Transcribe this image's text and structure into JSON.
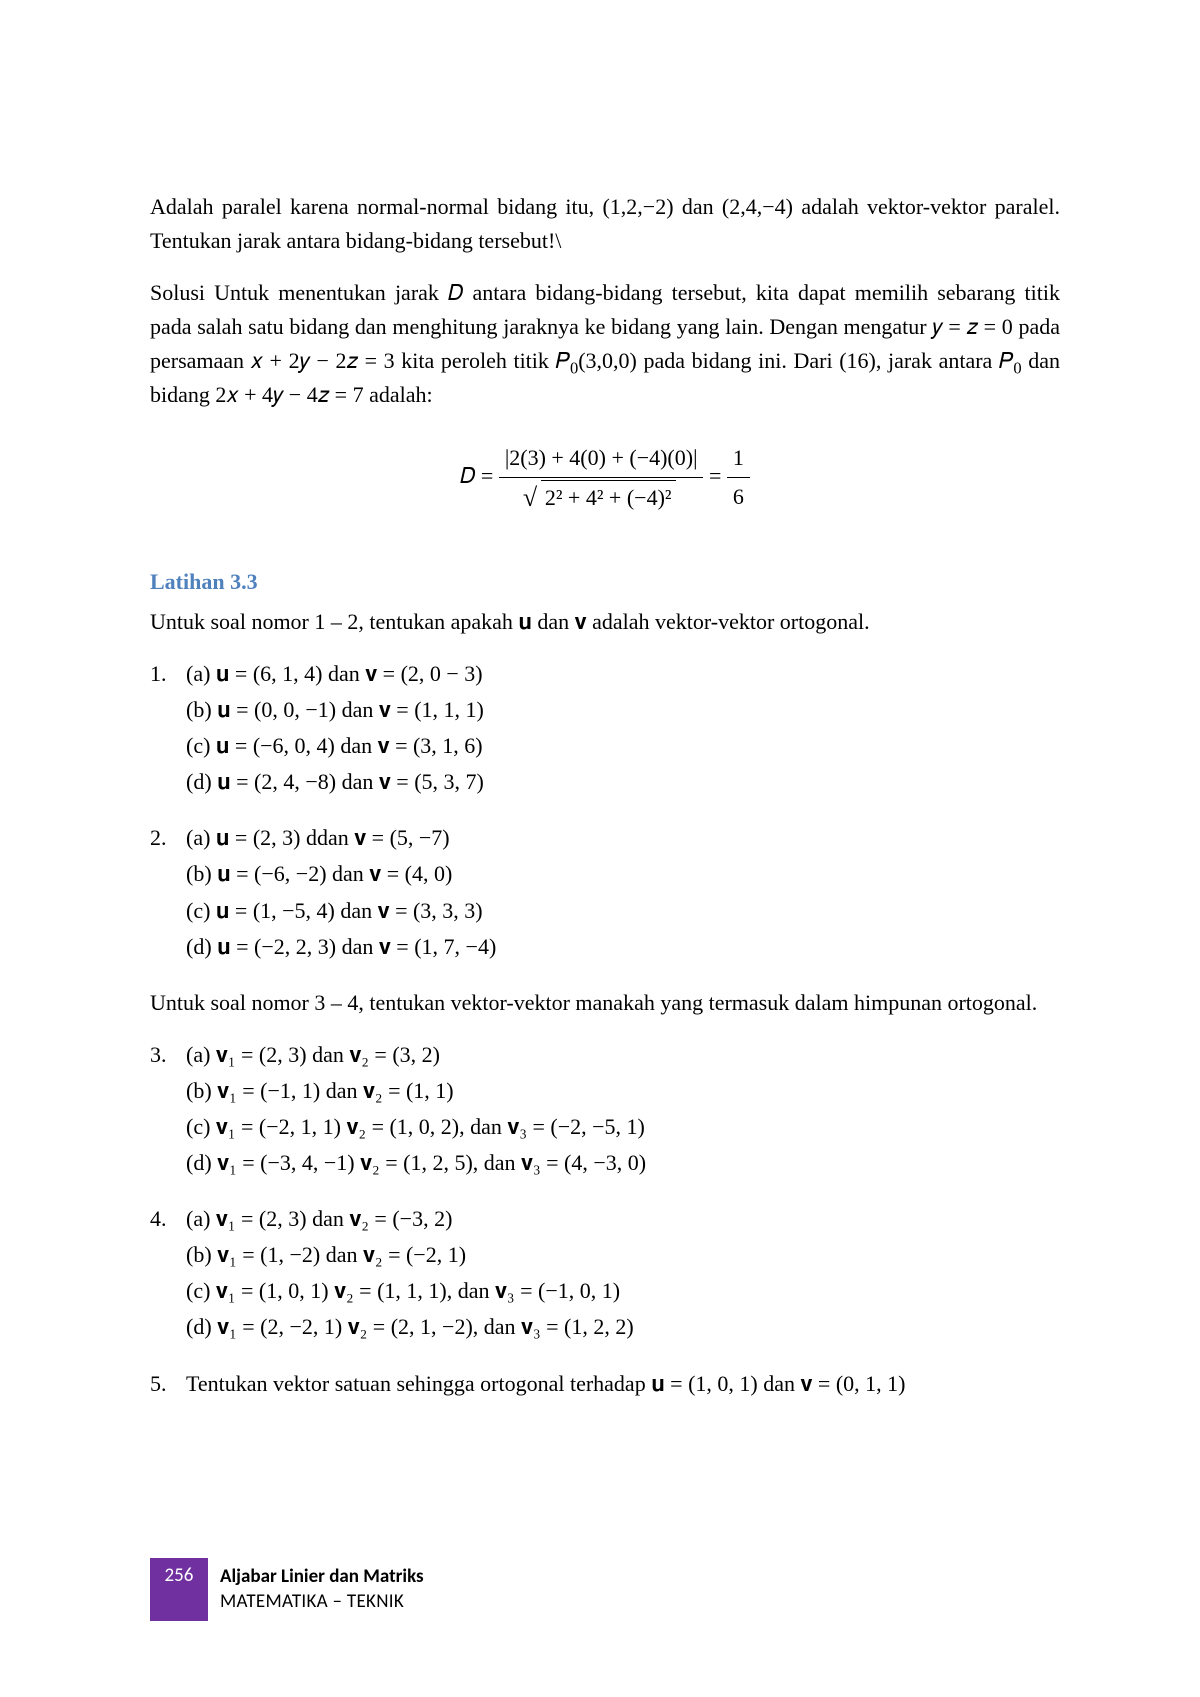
{
  "paragraphs": {
    "p1": "Adalah paralel karena normal-normal bidang itu, (1,2,−2) dan (2,4,−4) adalah vektor-vektor paralel.  Tentukan jarak antara bidang-bidang tersebut!\\",
    "p2a": "Solusi   Untuk menentukan jarak 𝐷 antara bidang-bidang tersebut, kita dapat memilih sebarang titik pada salah satu bidang dan menghitung jaraknya ke bidang yang lain.  Dengan mengatur 𝑦 = 𝑧 = 0 pada persamaan 𝑥 + 2𝑦 − 2𝑧 = 3 kita peroleh titik 𝑃",
    "p2b": "(3,0,0) pada bidang ini.  Dari (16), jarak antara 𝑃",
    "p2c": " dan bidang 2𝑥 + 4𝑦 − 4𝑧 = 7 adalah:",
    "eq_lhs": "𝐷 =",
    "eq_num": "|2(3) + 4(0) + (−4)(0)|",
    "eq_den_inner": "2² + 4² + (−4)²",
    "eq_mid": "=",
    "eq_frac2_num": "1",
    "eq_frac2_den": "6"
  },
  "heading": "Latihan 3.3",
  "intro1": "Untuk soal nomor 1 – 2, tentukan apakah 𝐮 dan 𝐯 adalah vektor-vektor ortogonal.",
  "intro2": "Untuk soal nomor 3 – 4, tentukan vektor-vektor manakah yang termasuk dalam himpunan ortogonal.",
  "problems": {
    "1": {
      "a": "𝐮 = (6, 1, 4) dan 𝐯 = (2, 0 − 3)",
      "b": "𝐮 = (0, 0, −1) dan 𝐯 = (1, 1, 1)",
      "c": "𝐮 = (−6, 0, 4) dan 𝐯 = (3, 1, 6)",
      "d": "𝐮 = (2, 4, −8) dan 𝐯 = (5, 3, 7)"
    },
    "2": {
      "a": "𝐮 = (2, 3) ddan 𝐯 = (5, −7)",
      "b": "𝐮 = (−6, −2) dan 𝐯 = (4, 0)",
      "c": "𝐮 = (1, −5, 4) dan 𝐯 = (3, 3, 3)",
      "d": "𝐮 = (−2, 2, 3) dan 𝐯 = (1, 7, −4)"
    },
    "3": {
      "a": "𝐯₁ = (2, 3) dan 𝐯₂ = (3, 2)",
      "b": "𝐯₁ = (−1,  1) dan 𝐯₂ = (1, 1)",
      "c": "𝐯₁ = (−2, 1, 1) 𝐯₂ = (1, 0, 2), dan 𝐯₃ = (−2, −5, 1)",
      "d": "𝐯₁ = (−3, 4, −1) 𝐯₂ = (1, 2, 5), dan 𝐯₃ = (4, −3, 0)"
    },
    "4": {
      "a": "𝐯₁ = (2, 3) dan 𝐯₂ = (−3, 2)",
      "b": "𝐯₁ = (1, −2) dan 𝐯₂ = (−2, 1)",
      "c": "𝐯₁ = (1, 0, 1) 𝐯₂ = (1, 1, 1), dan 𝐯₃ = (−1, 0, 1)",
      "d": "𝐯₁ = (2, −2, 1) 𝐯₂ = (2, 1, −2), dan 𝐯₃ = (1, 2, 2)"
    },
    "5": "Tentukan vektor satuan sehingga ortogonal terhadap 𝐮 = (1, 0, 1) dan 𝐯 = (0, 1, 1)"
  },
  "labels": {
    "n1": "1.",
    "n2": "2.",
    "n3": "3.",
    "n4": "4.",
    "n5": "5.",
    "la": "(a)  ",
    "lb": "(b)  ",
    "lc": "(c)  ",
    "ld": "(d)  "
  },
  "footer": {
    "page": "256",
    "title1": "Aljabar Linier dan Matriks",
    "title2": "MATEMATIKA – TEKNIK"
  },
  "colors": {
    "heading": "#4f81bd",
    "accent": "#7030a0",
    "text": "#000000",
    "background": "#ffffff"
  }
}
